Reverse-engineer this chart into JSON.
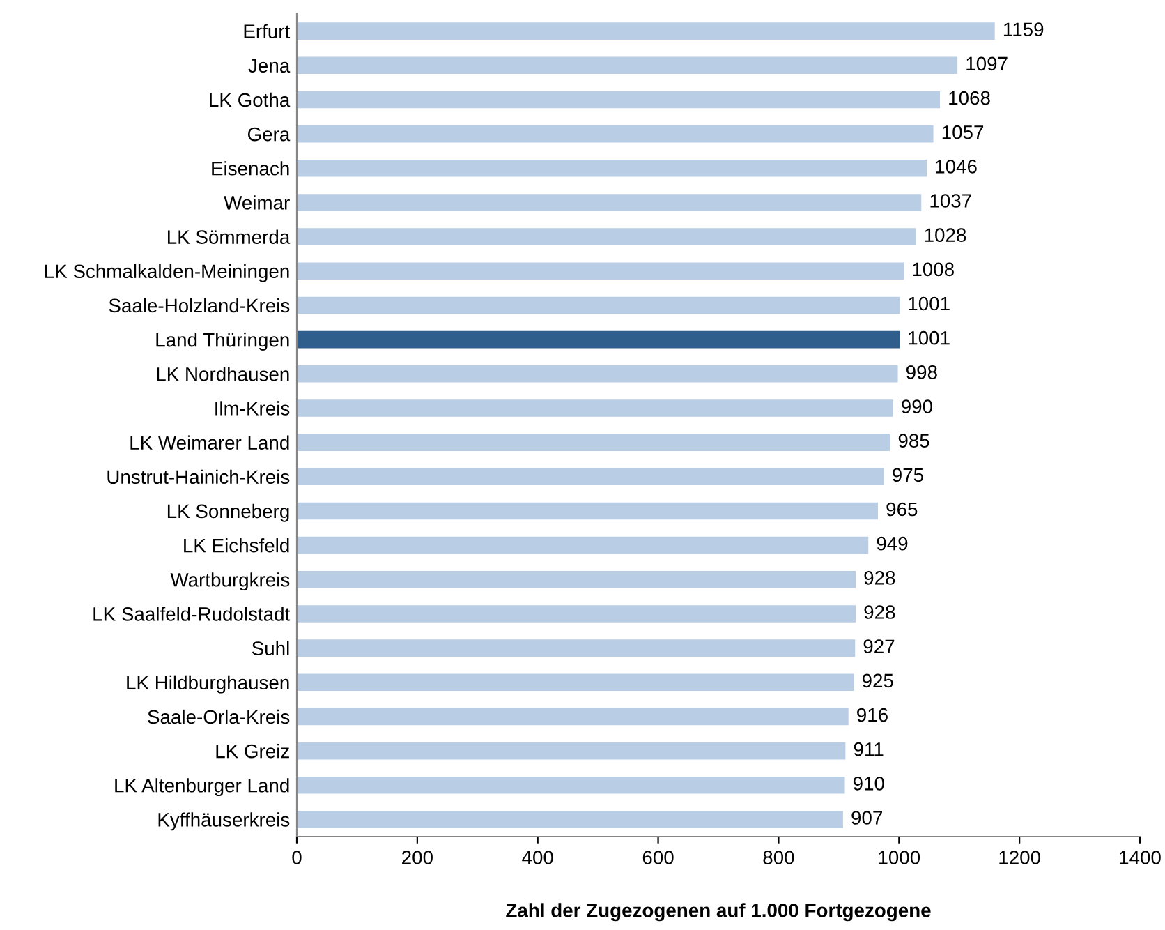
{
  "chart_data": {
    "type": "bar",
    "orientation": "horizontal",
    "xlabel": "Zahl der Zugezogenen auf 1.000 Fortgezogene",
    "categories": [
      "Erfurt",
      "Jena",
      "LK Gotha",
      "Gera",
      "Eisenach",
      "Weimar",
      "LK Sömmerda",
      "LK Schmalkalden-Meiningen",
      "Saale-Holzland-Kreis",
      "Land Thüringen",
      "LK Nordhausen",
      "Ilm-Kreis",
      "LK Weimarer Land",
      "Unstrut-Hainich-Kreis",
      "LK Sonneberg",
      "LK Eichsfeld",
      "Wartburgkreis",
      "LK Saalfeld-Rudolstadt",
      "Suhl",
      "LK Hildburghausen",
      "Saale-Orla-Kreis",
      "LK Greiz",
      "LK Altenburger Land",
      "Kyffhäuserkreis"
    ],
    "values": [
      1159,
      1097,
      1068,
      1057,
      1046,
      1037,
      1028,
      1008,
      1001,
      1001,
      998,
      990,
      985,
      975,
      965,
      949,
      928,
      928,
      927,
      925,
      916,
      911,
      910,
      907
    ],
    "colors": [
      "#b9cde5",
      "#b9cde5",
      "#b9cde5",
      "#b9cde5",
      "#b9cde5",
      "#b9cde5",
      "#b9cde5",
      "#b9cde5",
      "#b9cde5",
      "#2f5d8c",
      "#b9cde5",
      "#b9cde5",
      "#b9cde5",
      "#b9cde5",
      "#b9cde5",
      "#b9cde5",
      "#b9cde5",
      "#b9cde5",
      "#b9cde5",
      "#b9cde5",
      "#b9cde5",
      "#b9cde5",
      "#b9cde5",
      "#b9cde5"
    ],
    "xlim": [
      0,
      1400
    ],
    "xticks": [
      0,
      200,
      400,
      600,
      800,
      1000,
      1200,
      1400
    ],
    "data_labels": true,
    "grid": false
  }
}
